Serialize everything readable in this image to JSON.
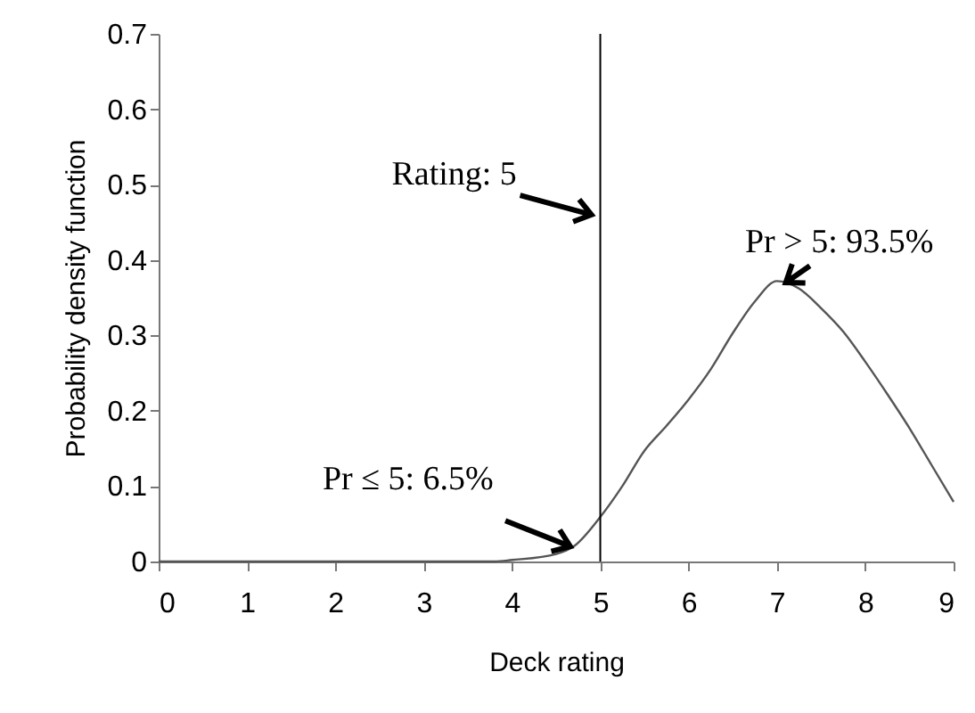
{
  "chart_data": {
    "type": "line",
    "xlabel": "Deck rating",
    "ylabel": "Probability density function",
    "x": [
      0,
      1,
      2,
      3,
      3.8,
      4,
      4.5,
      4.7,
      5,
      5.25,
      5.5,
      5.75,
      6,
      6.25,
      6.5,
      6.75,
      7,
      7.25,
      7.5,
      7.75,
      8,
      8.25,
      8.5,
      8.75,
      9
    ],
    "series": [
      {
        "color": "#555555",
        "values": [
          0,
          0,
          0,
          0,
          0,
          0.002,
          0.01,
          0.02,
          0.059,
          0.1,
          0.147,
          0.18,
          0.215,
          0.255,
          0.303,
          0.345,
          0.372,
          0.362,
          0.336,
          0.305,
          0.265,
          0.222,
          0.177,
          0.128,
          0.079
        ]
      }
    ],
    "xlim": [
      0,
      9
    ],
    "xticks": [
      0,
      1,
      2,
      3,
      4,
      5,
      6,
      7,
      8,
      9
    ],
    "ylim": [
      0,
      0.7
    ],
    "yticks": [
      {
        "value": 0,
        "label": "0"
      },
      0.1,
      0.2,
      0.3,
      0.4,
      0.5,
      0.6,
      0.7
    ],
    "grid": false,
    "marker": "none",
    "line_style": "solid",
    "ref_lines": [
      {
        "axis": "x",
        "value": 5,
        "color": "#000000"
      }
    ],
    "annotations": [
      {
        "text": "Rating: 5",
        "x": 4.9,
        "y": 0.46
      },
      {
        "text": "Pr > 5: 93.5%",
        "x": 7.1,
        "y": 0.37
      },
      {
        "text": "Pr ≤ 5: 6.5%",
        "x": 4.66,
        "y": 0.02
      }
    ]
  }
}
